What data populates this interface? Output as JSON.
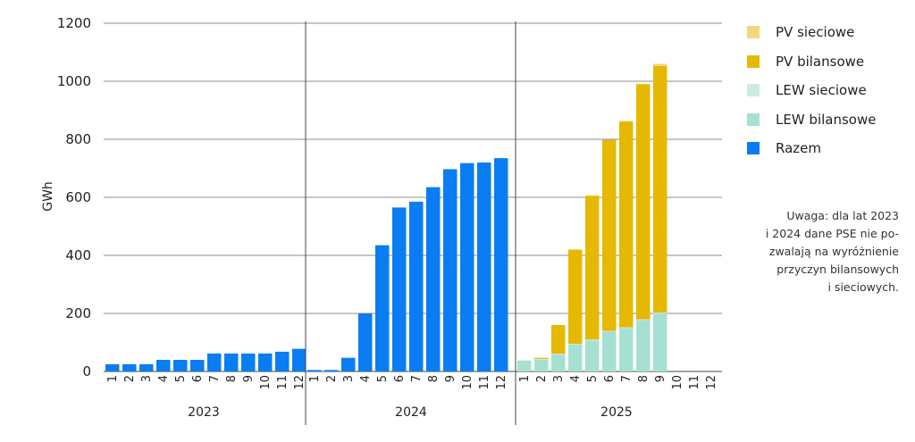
{
  "chart_data": {
    "type": "bar",
    "stacked": true,
    "ylabel": "GWh",
    "ylim": [
      0,
      1200
    ],
    "yticks": [
      0,
      200,
      400,
      600,
      800,
      1000,
      1200
    ],
    "grid": true,
    "legend_position": "right",
    "months": [
      "1",
      "2",
      "3",
      "4",
      "5",
      "6",
      "7",
      "8",
      "9",
      "10",
      "11",
      "12"
    ],
    "years": [
      "2023",
      "2024",
      "2025"
    ],
    "series": [
      {
        "name": "PV sieciowe",
        "color": "#f2d87a",
        "values": {
          "2023": [],
          "2024": [],
          "2025": [
            0,
            2,
            0,
            2,
            2,
            0,
            4,
            2,
            7,
            0,
            0,
            0
          ]
        }
      },
      {
        "name": "PV bilansowe",
        "color": "#e6b800",
        "values": {
          "2023": [],
          "2024": [],
          "2025": [
            0,
            3,
            99,
            324,
            495,
            658,
            708,
            810,
            850,
            0,
            0,
            0
          ]
        }
      },
      {
        "name": "LEW sieciowe",
        "color": "#cdeae2",
        "values": {
          "2023": [],
          "2024": [],
          "2025": [
            0,
            3,
            3,
            2,
            3,
            2,
            2,
            2,
            3,
            0,
            0,
            0
          ]
        }
      },
      {
        "name": "LEW bilansowe",
        "color": "#a6e0d2",
        "values": {
          "2023": [],
          "2024": [],
          "2025": [
            38,
            40,
            58,
            93,
            107,
            138,
            150,
            178,
            200,
            0,
            0,
            0
          ]
        }
      },
      {
        "name": "Razem",
        "color": "#0a7df2",
        "values": {
          "2023": [
            25,
            25,
            25,
            40,
            40,
            40,
            62,
            62,
            62,
            62,
            68,
            78
          ],
          "2024": [
            5,
            5,
            47,
            200,
            435,
            565,
            585,
            635,
            697,
            718,
            720,
            735
          ],
          "2025": []
        }
      }
    ]
  },
  "note": {
    "lines": [
      "Uwaga: dla lat 2023",
      "i 2024 dane PSE nie po-",
      "zwalają na wyróżnienie",
      "przyczyn bilansowych",
      "i sieciowych."
    ]
  }
}
